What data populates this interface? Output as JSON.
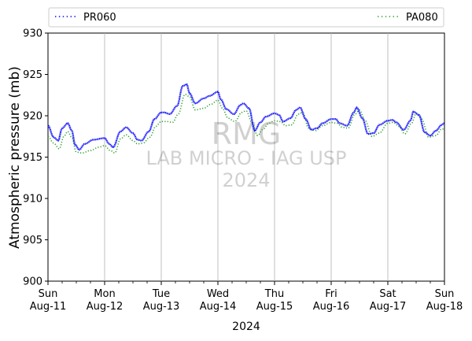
{
  "chart_data": {
    "type": "line",
    "title": "",
    "xlabel": "2024",
    "ylabel": "Atmospheric pressure (mb)",
    "ylim": [
      900,
      930
    ],
    "yticks": [
      900,
      905,
      910,
      915,
      920,
      925,
      930
    ],
    "xlim_days": [
      0,
      7
    ],
    "xtick_labels": [
      {
        "day": "Sun",
        "date": "Aug-11"
      },
      {
        "day": "Mon",
        "date": "Aug-12"
      },
      {
        "day": "Tue",
        "date": "Aug-13"
      },
      {
        "day": "Wed",
        "date": "Aug-14"
      },
      {
        "day": "Thu",
        "date": "Aug-15"
      },
      {
        "day": "Fri",
        "date": "Aug-16"
      },
      {
        "day": "Sat",
        "date": "Aug-17"
      },
      {
        "day": "Sun",
        "date": "Aug-18"
      }
    ],
    "grid": "vertical",
    "legend": "top",
    "watermark": [
      "RMG",
      "LAB MICRO - IAG USP",
      "2024"
    ],
    "series": [
      {
        "name": "PR060",
        "color": "#0000ff",
        "style": "dotted",
        "x": [
          0,
          0.1,
          0.18,
          0.25,
          0.35,
          0.42,
          0.48,
          0.55,
          0.65,
          0.8,
          1.0,
          1.08,
          1.15,
          1.28,
          1.38,
          1.5,
          1.58,
          1.65,
          1.78,
          1.88,
          2.0,
          2.05,
          2.15,
          2.28,
          2.38,
          2.45,
          2.5,
          2.6,
          2.75,
          2.85,
          3.0,
          3.05,
          3.15,
          3.28,
          3.4,
          3.45,
          3.55,
          3.65,
          3.75,
          3.85,
          4.0,
          4.08,
          4.15,
          4.28,
          4.38,
          4.45,
          4.55,
          4.65,
          4.75,
          4.85,
          5.0,
          5.08,
          5.15,
          5.28,
          5.4,
          5.45,
          5.55,
          5.65,
          5.75,
          5.85,
          6.0,
          6.08,
          6.15,
          6.28,
          6.4,
          6.45,
          6.55,
          6.65,
          6.75,
          6.85,
          6.95,
          7.0
        ],
        "y": [
          918.8,
          917.4,
          917.0,
          918.5,
          919.1,
          918.2,
          916.5,
          915.9,
          916.6,
          917.1,
          917.3,
          916.6,
          916.2,
          918.1,
          918.6,
          917.9,
          917.1,
          917.0,
          918.1,
          919.6,
          920.4,
          920.4,
          920.2,
          921.2,
          923.6,
          923.8,
          922.7,
          921.5,
          922.1,
          922.4,
          922.9,
          922.0,
          920.8,
          920.2,
          921.3,
          921.5,
          920.9,
          918.2,
          919.2,
          919.9,
          920.3,
          920.1,
          919.3,
          919.7,
          920.7,
          921.0,
          919.6,
          918.3,
          918.5,
          919.1,
          919.6,
          919.6,
          919.1,
          918.8,
          920.4,
          921.0,
          919.7,
          917.8,
          917.9,
          918.9,
          919.4,
          919.5,
          919.2,
          918.3,
          919.4,
          920.5,
          920.1,
          918.0,
          917.6,
          918.2,
          918.9,
          919.1
        ]
      },
      {
        "name": "PA080",
        "color": "#2ca02c",
        "style": "dotted",
        "x": [
          0,
          0.1,
          0.2,
          0.28,
          0.35,
          0.42,
          0.5,
          0.6,
          0.75,
          0.9,
          1.0,
          1.1,
          1.18,
          1.28,
          1.38,
          1.5,
          1.58,
          1.68,
          1.8,
          1.9,
          2.0,
          2.1,
          2.2,
          2.3,
          2.42,
          2.5,
          2.6,
          2.75,
          2.88,
          3.0,
          3.08,
          3.18,
          3.3,
          3.42,
          3.5,
          3.6,
          3.7,
          3.8,
          3.9,
          4.0,
          4.1,
          4.2,
          4.3,
          4.42,
          4.5,
          4.6,
          4.72,
          4.85,
          5.0,
          5.1,
          5.2,
          5.3,
          5.42,
          5.5,
          5.6,
          5.72,
          5.85,
          6.0,
          6.1,
          6.2,
          6.3,
          6.42,
          6.5,
          6.6,
          6.72,
          6.85,
          6.95,
          7.0
        ],
        "y": [
          917.5,
          916.7,
          916.0,
          917.5,
          918.1,
          917.4,
          915.6,
          915.5,
          915.8,
          916.2,
          916.4,
          915.8,
          915.5,
          917.2,
          917.7,
          917.0,
          916.6,
          916.7,
          917.4,
          918.7,
          919.3,
          919.3,
          919.2,
          920.2,
          922.6,
          922.3,
          920.7,
          920.9,
          921.4,
          921.9,
          920.9,
          919.7,
          919.3,
          920.4,
          920.6,
          919.2,
          917.6,
          918.4,
          919.1,
          919.4,
          919.3,
          918.8,
          918.9,
          920.2,
          920.4,
          918.5,
          918.2,
          918.8,
          919.2,
          919.1,
          918.6,
          918.5,
          920.2,
          920.7,
          919.4,
          917.5,
          917.9,
          919.1,
          919.2,
          918.7,
          917.8,
          919.1,
          920.3,
          919.6,
          917.4,
          917.6,
          918.4,
          918.4
        ]
      }
    ]
  }
}
